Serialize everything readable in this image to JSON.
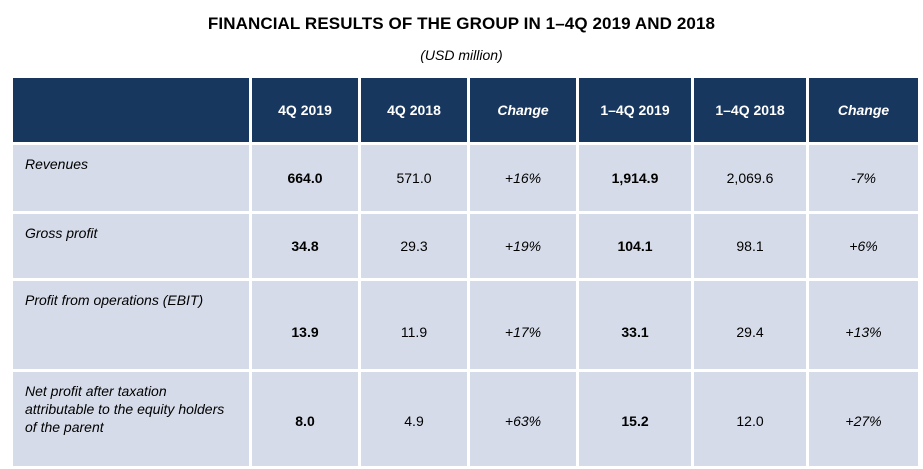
{
  "title": "FINANCIAL RESULTS OF THE GROUP IN 1–4Q 2019 AND 2018",
  "subtitle": "(USD million)",
  "table": {
    "headers": [
      "",
      "4Q 2019",
      "4Q 2018",
      "Change",
      "1–4Q 2019",
      "1–4Q 2018",
      "Change"
    ],
    "rows": [
      {
        "label": "Revenues",
        "values": [
          "664.0",
          "571.0",
          "+16%",
          "1,914.9",
          "2,069.6",
          "-7%"
        ]
      },
      {
        "label": "Gross profit",
        "values": [
          "34.8",
          "29.3",
          "+19%",
          "104.1",
          "98.1",
          "+6%"
        ]
      },
      {
        "label": "Profit from operations (EBIT)",
        "values": [
          "13.9",
          "11.9",
          "+17%",
          "33.1",
          "29.4",
          "+13%"
        ]
      },
      {
        "label": "Net profit after taxation attributable to the equity holders of the parent",
        "values": [
          "8.0",
          "4.9",
          "+63%",
          "15.2",
          "12.0",
          "+27%"
        ]
      }
    ]
  },
  "colors": {
    "header_bg": "#17375e",
    "row_bg": "#d5dbe8"
  }
}
